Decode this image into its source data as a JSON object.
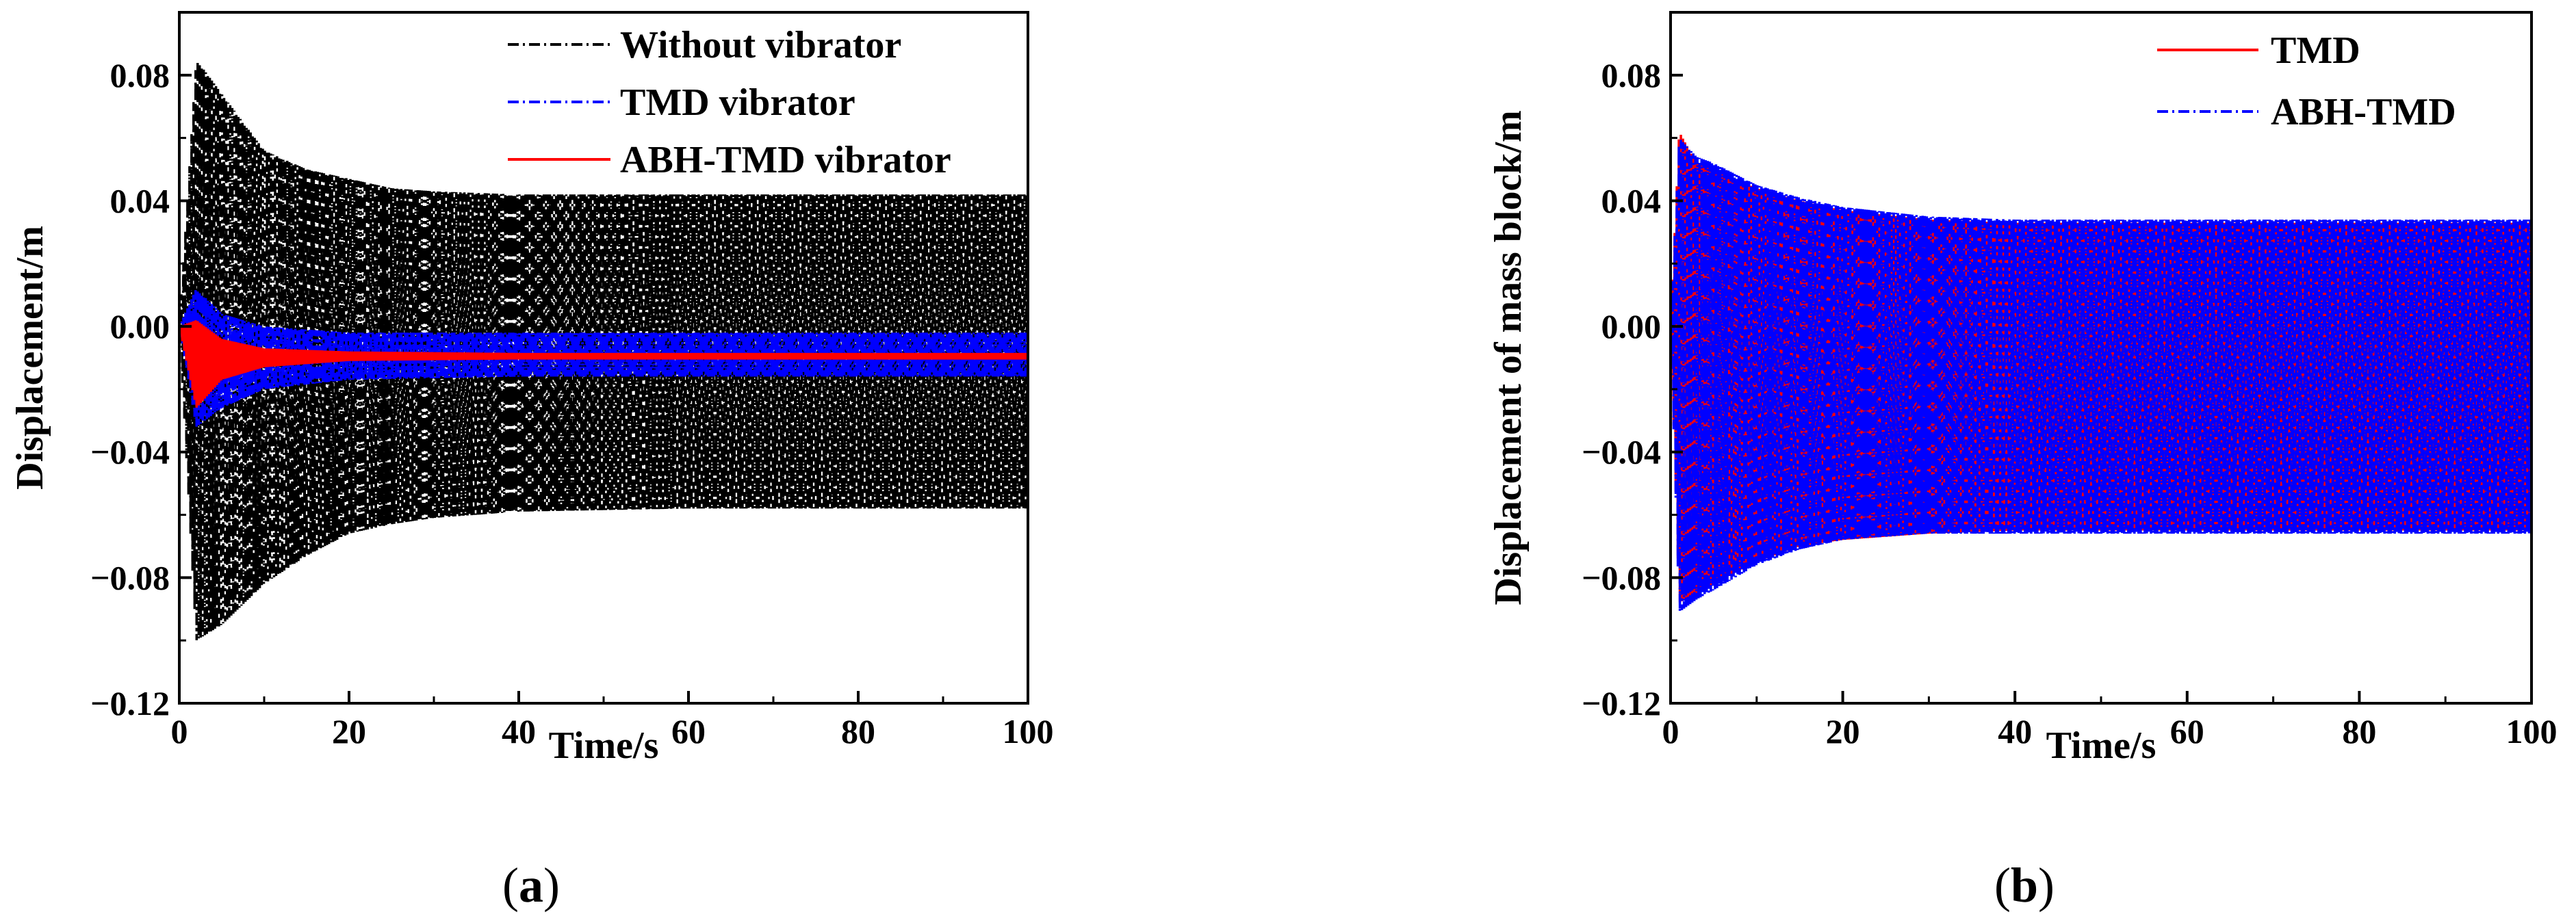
{
  "chart_data": [
    {
      "type": "line",
      "panel": "(a)",
      "panel_letter": "a",
      "xlabel": "Time/s",
      "ylabel": "Displacement/m",
      "xlim": [
        0,
        100
      ],
      "ylim": [
        -0.12,
        0.1
      ],
      "xticks": [
        0,
        20,
        40,
        60,
        80,
        100
      ],
      "xtick_labels": [
        "0",
        "20",
        "40",
        "60",
        "80",
        "100"
      ],
      "yticks": [
        -0.12,
        -0.08,
        -0.04,
        0.0,
        0.04,
        0.08
      ],
      "ytick_labels": [
        "−0.12",
        "−0.08",
        "−0.04",
        "0.00",
        "0.04",
        "0.08"
      ],
      "legend_position": "top-right",
      "series": [
        {
          "name": "Without vibrator",
          "color": "#000000",
          "style": "dash-dot",
          "envelope": {
            "t": [
              0,
              2,
              5,
              10,
              15,
              20,
              25,
              30,
              40,
              60,
              80,
              100
            ],
            "max": [
              0.0,
              0.085,
              0.074,
              0.056,
              0.05,
              0.047,
              0.044,
              0.043,
              0.042,
              0.042,
              0.042,
              0.042
            ],
            "min": [
              0.0,
              -0.1,
              -0.095,
              -0.082,
              -0.073,
              -0.066,
              -0.063,
              -0.061,
              -0.059,
              -0.058,
              -0.058,
              -0.058
            ]
          }
        },
        {
          "name": "TMD vibrator",
          "color": "#0000ff",
          "style": "dash-dot",
          "envelope": {
            "t": [
              0,
              2,
              5,
              10,
              20,
              40,
              60,
              80,
              100
            ],
            "max": [
              0.0,
              0.012,
              0.004,
              0.0,
              -0.002,
              -0.002,
              -0.002,
              -0.002,
              -0.002
            ],
            "min": [
              0.0,
              -0.032,
              -0.026,
              -0.02,
              -0.017,
              -0.016,
              -0.016,
              -0.016,
              -0.016
            ]
          }
        },
        {
          "name": "ABH-TMD vibrator",
          "color": "#ff0000",
          "style": "solid",
          "envelope": {
            "t": [
              0,
              2,
              5,
              10,
              20,
              40,
              60,
              80,
              100
            ],
            "max": [
              0.0,
              0.002,
              -0.004,
              -0.007,
              -0.008,
              -0.0085,
              -0.0085,
              -0.0085,
              -0.0085
            ],
            "min": [
              0.0,
              -0.026,
              -0.017,
              -0.013,
              -0.011,
              -0.0105,
              -0.0105,
              -0.0105,
              -0.0105
            ]
          }
        }
      ]
    },
    {
      "type": "line",
      "panel": "(b)",
      "panel_letter": "b",
      "xlabel": "Time/s",
      "ylabel": "Displacement of mass block/m",
      "xlim": [
        0,
        100
      ],
      "ylim": [
        -0.12,
        0.1
      ],
      "xticks": [
        0,
        20,
        40,
        60,
        80,
        100
      ],
      "xtick_labels": [
        "0",
        "20",
        "40",
        "60",
        "80",
        "100"
      ],
      "yticks": [
        -0.12,
        -0.08,
        -0.04,
        0.0,
        0.04,
        0.08
      ],
      "ytick_labels": [
        "−0.12",
        "−0.08",
        "−0.04",
        "0.00",
        "0.04",
        "0.08"
      ],
      "legend_position": "top-right",
      "series": [
        {
          "name": "TMD",
          "color": "#ff0000",
          "style": "solid",
          "envelope": {
            "t": [
              0,
              1,
              3,
              5,
              10,
              15,
              20,
              30,
              40,
              60,
              80,
              100
            ],
            "max": [
              0.0,
              0.062,
              0.052,
              0.05,
              0.044,
              0.04,
              0.037,
              0.034,
              0.033,
              0.033,
              0.033,
              0.033
            ],
            "min": [
              0.0,
              -0.088,
              -0.085,
              -0.082,
              -0.075,
              -0.07,
              -0.068,
              -0.066,
              -0.065,
              -0.065,
              -0.065,
              -0.065
            ]
          }
        },
        {
          "name": "ABH-TMD",
          "color": "#0000ff",
          "style": "dash-dot",
          "envelope": {
            "t": [
              0,
              1,
              3,
              5,
              10,
              15,
              20,
              30,
              40,
              60,
              80,
              100
            ],
            "max": [
              0.0,
              0.06,
              0.054,
              0.052,
              0.045,
              0.041,
              0.038,
              0.035,
              0.034,
              0.034,
              0.034,
              0.034
            ],
            "min": [
              0.0,
              -0.091,
              -0.087,
              -0.084,
              -0.076,
              -0.071,
              -0.068,
              -0.066,
              -0.066,
              -0.066,
              -0.066,
              -0.066
            ]
          }
        }
      ]
    }
  ]
}
